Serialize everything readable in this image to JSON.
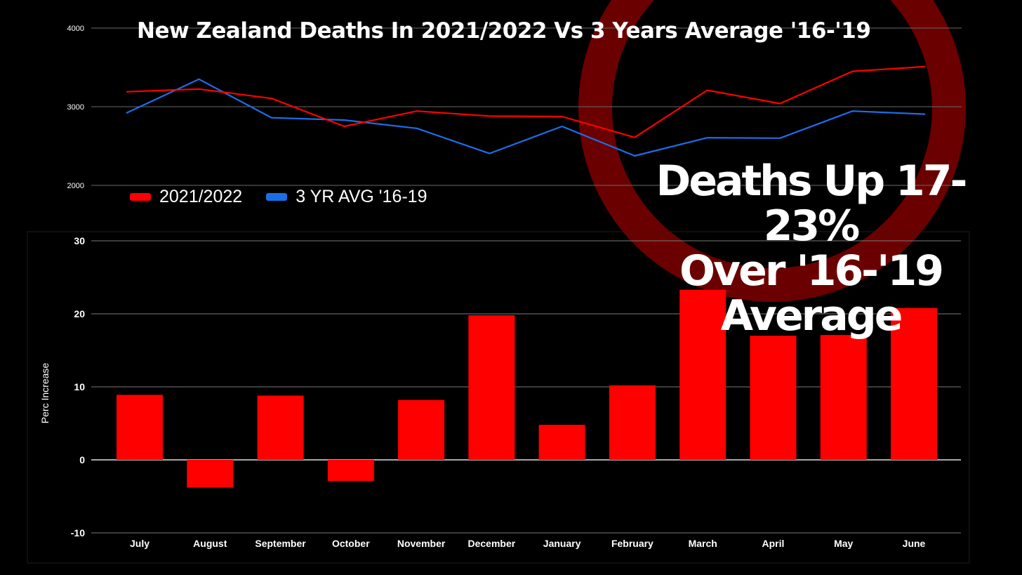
{
  "colors": {
    "background": "#000000",
    "series_2021": "#ff0000",
    "series_avg": "#1a6fe8",
    "bar": "#ff0000",
    "circle": "#6b0000",
    "grid": "#9a9a9a",
    "text": "#ffffff"
  },
  "overlay": {
    "headline_lines": [
      "Deaths Up 17-23%",
      "Over '16-'19",
      "Average"
    ]
  },
  "chart_data": [
    {
      "type": "line",
      "title": "New Zealand Deaths In 2021/2022 Vs 3 Years Average '16-'19",
      "categories": [
        "July",
        "August",
        "September",
        "October",
        "November",
        "December",
        "January",
        "February",
        "March",
        "April",
        "May",
        "June"
      ],
      "series": [
        {
          "name": "2021/2022",
          "values": [
            3190,
            3225,
            3105,
            2750,
            2945,
            2880,
            2875,
            2610,
            3210,
            3040,
            3450,
            3510
          ]
        },
        {
          "name": "3 YR AVG '16-19",
          "values": [
            2920,
            3350,
            2860,
            2830,
            2725,
            2405,
            2750,
            2375,
            2605,
            2600,
            2945,
            2905
          ]
        }
      ],
      "yticks": [
        2000,
        3000,
        4000
      ],
      "ylim": [
        2000,
        4000
      ],
      "legend_position": "bottom-left",
      "grid": true
    },
    {
      "type": "bar",
      "categories": [
        "July",
        "August",
        "September",
        "October",
        "November",
        "December",
        "January",
        "February",
        "March",
        "April",
        "May",
        "June"
      ],
      "values": [
        8.9,
        -3.8,
        8.8,
        -2.9,
        8.2,
        19.8,
        4.8,
        10.2,
        23.3,
        17.0,
        17.1,
        20.8
      ],
      "ylabel": "Perc Increase",
      "yticks": [
        -10,
        0,
        10,
        20,
        30
      ],
      "ylim": [
        -10,
        30
      ],
      "grid": true
    }
  ]
}
